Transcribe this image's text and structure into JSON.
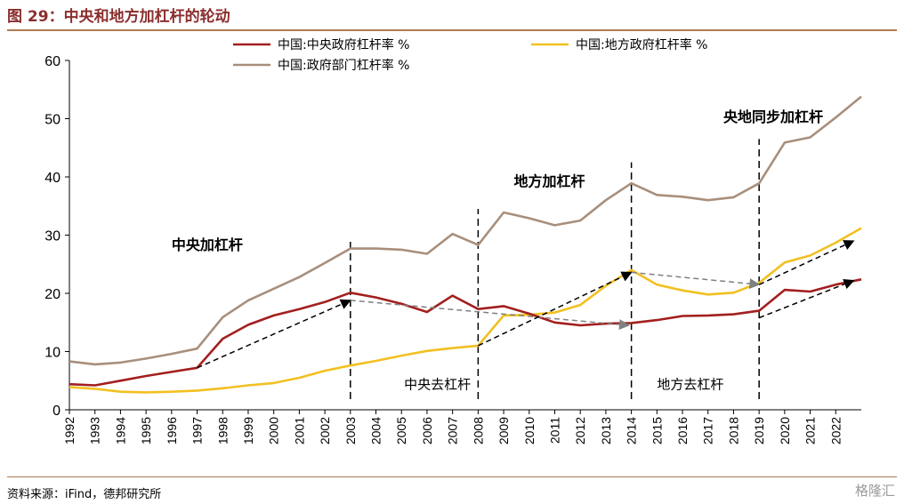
{
  "figure": {
    "title": "图 29：中央和地方加杠杆的轮动",
    "source": "资料来源：iFind，德邦研究所",
    "watermark": "格隆汇"
  },
  "chart_data": {
    "type": "line",
    "title": "图 29：中央和地方加杠杆的轮动",
    "xlabel": "",
    "ylabel": "",
    "ylim": [
      0,
      60
    ],
    "yticks": [
      0,
      10,
      20,
      30,
      40,
      50,
      60
    ],
    "x": [
      "1992",
      "1993",
      "1994",
      "1995",
      "1996",
      "1997",
      "1998",
      "1999",
      "2000",
      "2001",
      "2002",
      "2003",
      "2004",
      "2005",
      "2006",
      "2007",
      "2008",
      "2009",
      "2010",
      "2011",
      "2012",
      "2013",
      "2014",
      "2015",
      "2016",
      "2017",
      "2018",
      "2019",
      "2020",
      "2021",
      "2022",
      "2023"
    ],
    "xtick_labels": [
      "1992",
      "1993",
      "1994",
      "1995",
      "1996",
      "1997",
      "1998",
      "1999",
      "2000",
      "2001",
      "2002",
      "2003",
      "2004",
      "2005",
      "2006",
      "2007",
      "2008",
      "2009",
      "2010",
      "2011",
      "2012",
      "2013",
      "2014",
      "2015",
      "2016",
      "2017",
      "2018",
      "2019",
      "2020",
      "2021",
      "2022"
    ],
    "grid": false,
    "legend_position": "top",
    "series": [
      {
        "name": "中国:中央政府杠杆率 %",
        "color": "#A31F1F",
        "values": [
          4.4,
          4.2,
          5.0,
          5.8,
          6.5,
          7.2,
          12.2,
          14.6,
          16.2,
          17.3,
          18.5,
          20.1,
          19.3,
          18.2,
          16.8,
          19.6,
          17.3,
          17.8,
          16.5,
          15.0,
          14.5,
          14.8,
          14.9,
          15.4,
          16.1,
          16.2,
          16.4,
          17.0,
          20.6,
          20.3,
          21.5,
          22.4
        ]
      },
      {
        "name": "中国:地方政府杠杆率 %",
        "color": "#F2C021",
        "values": [
          3.9,
          3.6,
          3.1,
          3.0,
          3.1,
          3.3,
          3.7,
          4.2,
          4.6,
          5.5,
          6.7,
          7.6,
          8.4,
          9.3,
          10.1,
          10.6,
          11.0,
          16.2,
          16.3,
          16.7,
          18.0,
          21.3,
          24.0,
          21.5,
          20.5,
          19.8,
          20.1,
          21.8,
          25.3,
          26.5,
          28.7,
          31.2
        ]
      },
      {
        "name": "中国:政府部门杠杆率 %",
        "color": "#A88F7C",
        "values": [
          8.3,
          7.8,
          8.1,
          8.8,
          9.6,
          10.5,
          15.9,
          18.8,
          20.8,
          22.8,
          25.2,
          27.7,
          27.7,
          27.5,
          26.8,
          30.2,
          28.3,
          33.9,
          32.9,
          31.7,
          32.5,
          36.0,
          38.9,
          36.9,
          36.6,
          36.0,
          36.5,
          38.9,
          45.9,
          46.8,
          50.2,
          53.8
        ]
      }
    ],
    "vlines": [
      "2003",
      "2008",
      "2014",
      "2019"
    ],
    "annotations": [
      {
        "text": "中央加杠杆",
        "bold": true,
        "x": "1996",
        "y": 27.5
      },
      {
        "text": "中央去杠杆",
        "bold": false,
        "x": "2005.1",
        "y": 3.6
      },
      {
        "text": "地方加杠杆",
        "bold": true,
        "x": "2009.4",
        "y": 38.4
      },
      {
        "text": "地方去杠杆",
        "bold": false,
        "x": "2015",
        "y": 3.6
      },
      {
        "text": "央地同步加杠杆",
        "bold": true,
        "x": "2017.6",
        "y": 49.5
      }
    ],
    "arrows": [
      {
        "color": "#000000",
        "from": [
          "1997",
          7.2
        ],
        "to": [
          "2003",
          18.8
        ]
      },
      {
        "color": "#808080",
        "from": [
          "2003",
          18.8
        ],
        "to": [
          "2013.9",
          14.5
        ]
      },
      {
        "color": "#000000",
        "from": [
          "2008",
          11.0
        ],
        "to": [
          "2014",
          23.6
        ]
      },
      {
        "color": "#808080",
        "from": [
          "2014",
          23.6
        ],
        "to": [
          "2019",
          21.5
        ]
      },
      {
        "color": "#000000",
        "from": [
          "2019",
          21.5
        ],
        "to": [
          "2022.7",
          29.0
        ]
      },
      {
        "color": "#000000",
        "from": [
          "2019",
          15.8
        ],
        "to": [
          "2022.7",
          22.2
        ]
      }
    ]
  }
}
